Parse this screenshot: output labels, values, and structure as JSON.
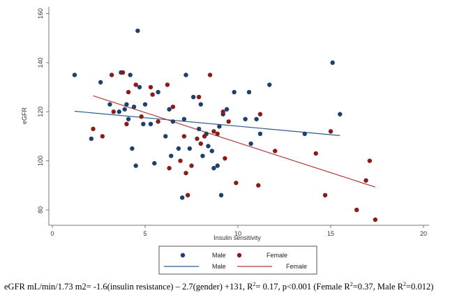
{
  "chart_data": {
    "type": "scatter",
    "xlabel": "Insulin sensitivity",
    "ylabel": "eGFR",
    "xlim": [
      0,
      20
    ],
    "ylim": [
      76,
      161
    ],
    "x_ticks": [
      0,
      5,
      10,
      15,
      20
    ],
    "y_ticks": [
      80,
      100,
      120,
      140,
      160
    ],
    "x_tick_labels": [
      "0",
      "5",
      "10",
      "15",
      "20"
    ],
    "y_tick_labels": [
      "80",
      "100",
      "120",
      "140",
      "160"
    ],
    "grid": false,
    "legend_position": "bottom",
    "series": [
      {
        "name": "Male",
        "kind": "points",
        "color": "#1f3f6e",
        "points": [
          [
            1.2,
            135
          ],
          [
            2.1,
            109
          ],
          [
            2.6,
            132
          ],
          [
            3.1,
            123
          ],
          [
            3.6,
            120
          ],
          [
            3.7,
            136
          ],
          [
            3.9,
            121
          ],
          [
            4.0,
            123
          ],
          [
            4.1,
            117
          ],
          [
            4.2,
            135
          ],
          [
            4.3,
            105
          ],
          [
            4.4,
            122
          ],
          [
            4.5,
            98
          ],
          [
            4.6,
            153
          ],
          [
            4.7,
            130
          ],
          [
            4.9,
            115
          ],
          [
            5.0,
            123
          ],
          [
            5.3,
            115
          ],
          [
            5.5,
            99
          ],
          [
            5.7,
            128
          ],
          [
            6.1,
            110
          ],
          [
            6.3,
            121
          ],
          [
            6.4,
            102
          ],
          [
            6.5,
            116
          ],
          [
            6.8,
            105
          ],
          [
            7.0,
            85
          ],
          [
            7.1,
            117
          ],
          [
            7.2,
            135
          ],
          [
            7.4,
            105
          ],
          [
            7.6,
            126
          ],
          [
            7.9,
            113
          ],
          [
            8.0,
            123
          ],
          [
            8.1,
            102
          ],
          [
            8.3,
            111
          ],
          [
            8.4,
            106
          ],
          [
            8.6,
            104
          ],
          [
            8.7,
            97
          ],
          [
            8.9,
            98
          ],
          [
            9.0,
            114
          ],
          [
            9.1,
            86
          ],
          [
            9.2,
            119
          ],
          [
            9.4,
            121
          ],
          [
            9.8,
            128
          ],
          [
            10.4,
            117
          ],
          [
            10.6,
            128
          ],
          [
            10.7,
            107
          ],
          [
            11.0,
            117
          ],
          [
            11.2,
            111
          ],
          [
            11.7,
            131
          ],
          [
            13.6,
            111
          ],
          [
            15.1,
            140
          ],
          [
            15.5,
            119
          ]
        ]
      },
      {
        "name": "Female",
        "kind": "points",
        "color": "#8b1a1a",
        "points": [
          [
            2.2,
            113
          ],
          [
            2.7,
            110
          ],
          [
            3.2,
            135
          ],
          [
            3.3,
            120
          ],
          [
            3.8,
            136
          ],
          [
            4.0,
            115
          ],
          [
            4.1,
            128
          ],
          [
            4.5,
            131
          ],
          [
            4.8,
            118
          ],
          [
            5.3,
            130
          ],
          [
            5.4,
            127
          ],
          [
            5.7,
            116
          ],
          [
            6.2,
            131
          ],
          [
            6.3,
            97
          ],
          [
            6.5,
            122
          ],
          [
            6.9,
            100
          ],
          [
            7.1,
            110
          ],
          [
            7.2,
            95
          ],
          [
            7.3,
            86
          ],
          [
            7.5,
            98
          ],
          [
            7.8,
            109
          ],
          [
            7.9,
            126
          ],
          [
            8.0,
            107
          ],
          [
            8.2,
            110
          ],
          [
            8.5,
            135
          ],
          [
            8.7,
            112
          ],
          [
            8.9,
            111
          ],
          [
            9.2,
            120
          ],
          [
            9.3,
            101
          ],
          [
            9.5,
            116
          ],
          [
            9.9,
            91
          ],
          [
            11.1,
            90
          ],
          [
            11.2,
            119
          ],
          [
            12.0,
            104
          ],
          [
            14.2,
            103
          ],
          [
            14.7,
            86
          ],
          [
            15.0,
            112
          ],
          [
            16.4,
            80
          ],
          [
            16.9,
            92
          ],
          [
            17.1,
            100
          ],
          [
            17.4,
            76
          ]
        ]
      },
      {
        "name": "Male",
        "kind": "fit-line",
        "color": "#2d5a8c",
        "x": [
          1.2,
          15.5
        ],
        "y": [
          120.2,
          110.3
        ]
      },
      {
        "name": "Female",
        "kind": "fit-line",
        "color": "#b03a3a",
        "x": [
          2.2,
          17.4
        ],
        "y": [
          126.5,
          89.3
        ]
      }
    ]
  },
  "legend": {
    "row1": [
      "Male",
      "Female"
    ],
    "row2": [
      "Male",
      "Female"
    ]
  },
  "caption": {
    "part1": "eGFR mL/min/1.73 m2= -1.6(insulin resistance) – 2.7(gender) +131,   R",
    "sup1": "2",
    "part2": "= 0.17, p<0.001 (Female R",
    "sup2": "2",
    "part3": "=0.37, Male R",
    "sup3": "2",
    "part4": "=0.012)"
  }
}
